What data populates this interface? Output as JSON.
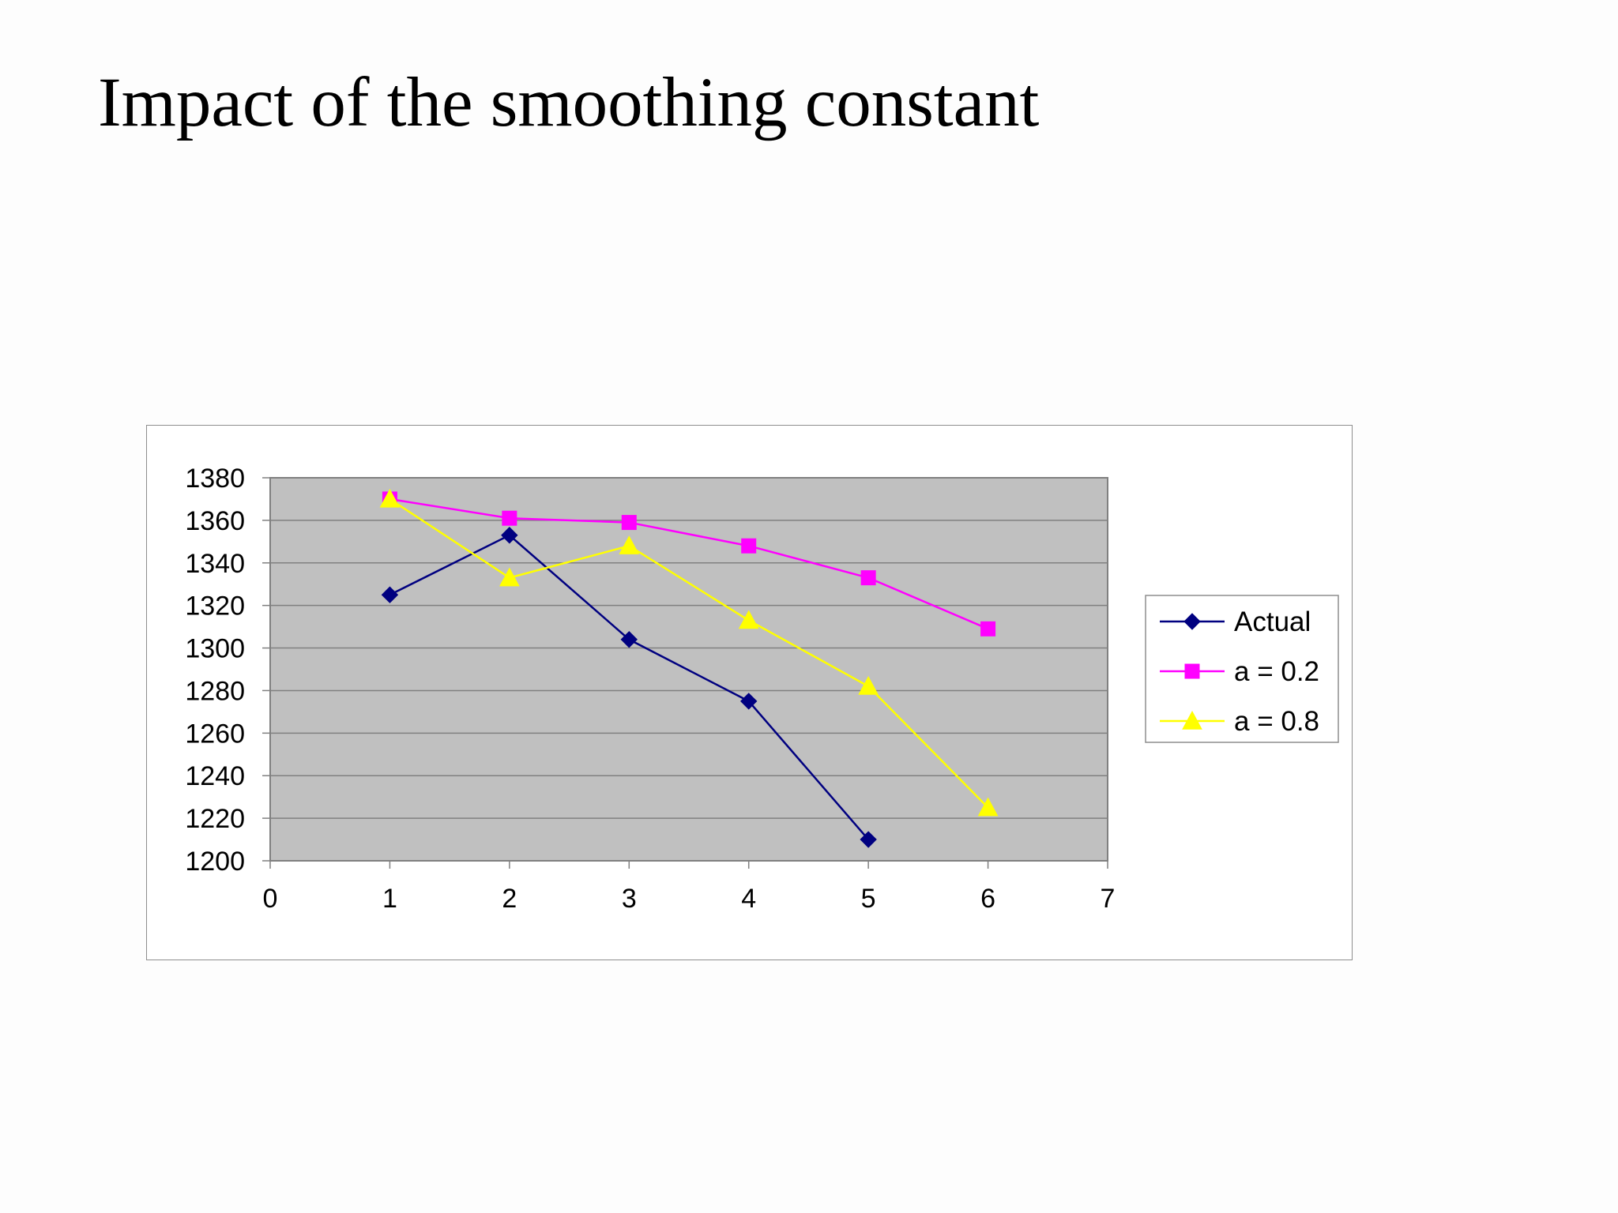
{
  "slide": {
    "title": "Impact of the smoothing constant"
  },
  "colors": {
    "plot_background": "#c0c0c0",
    "gridline": "#808080",
    "axis": "#808080",
    "chart_background": "#ffffff",
    "frame_border": "#8e8e8e"
  },
  "chart_data": {
    "type": "line",
    "title": "",
    "xlabel": "",
    "ylabel": "",
    "xlim": [
      0,
      7
    ],
    "ylim": [
      1200,
      1380
    ],
    "x_ticks": [
      0,
      1,
      2,
      3,
      4,
      5,
      6,
      7
    ],
    "y_ticks": [
      1200,
      1220,
      1240,
      1260,
      1280,
      1300,
      1320,
      1340,
      1360,
      1380
    ],
    "grid": "horizontal",
    "legend_position": "right",
    "series": [
      {
        "name": "Actual",
        "color": "#000080",
        "marker": "diamond",
        "x": [
          1,
          2,
          3,
          4,
          5
        ],
        "y": [
          1325,
          1353,
          1304,
          1275,
          1210
        ]
      },
      {
        "name": "a = 0.2",
        "color": "#ff00ff",
        "marker": "square",
        "x": [
          1,
          2,
          3,
          4,
          5,
          6
        ],
        "y": [
          1370,
          1361,
          1359,
          1348,
          1333,
          1309
        ]
      },
      {
        "name": "a = 0.8",
        "color": "#ffff00",
        "marker": "triangle",
        "x": [
          1,
          2,
          3,
          4,
          5,
          6
        ],
        "y": [
          1370,
          1333,
          1348,
          1313,
          1282,
          1225
        ]
      }
    ]
  }
}
